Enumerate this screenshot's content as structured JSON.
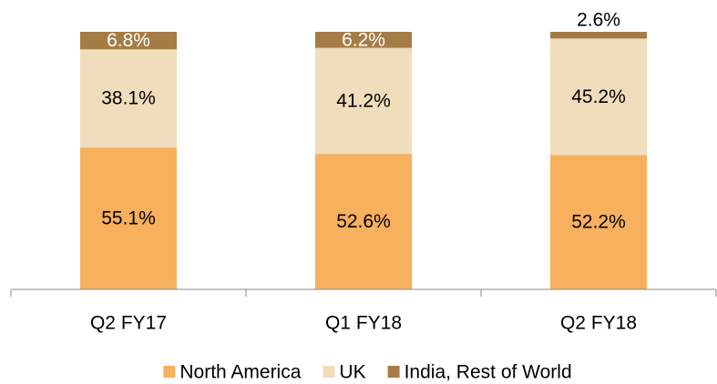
{
  "chart_data": {
    "type": "stacked-bar",
    "categories": [
      "Q2 FY17",
      "Q1 FY18",
      "Q2 FY18"
    ],
    "series": [
      {
        "name": "North America",
        "color": "#f7b05b",
        "values": [
          55.1,
          52.6,
          52.2
        ],
        "value_labels": [
          "55.1%",
          "52.6%",
          "52.2%"
        ]
      },
      {
        "name": "UK",
        "color": "#efddbc",
        "values": [
          38.1,
          41.2,
          45.2
        ],
        "value_labels": [
          "38.1%",
          "41.2%",
          "45.2%"
        ]
      },
      {
        "name": "India, Rest of World",
        "color": "#a57c45",
        "values": [
          6.8,
          6.2,
          2.6
        ],
        "value_labels": [
          "6.8%",
          "6.2%",
          "2.6%"
        ]
      }
    ],
    "ylim": [
      0,
      100
    ],
    "legend": "bottom"
  }
}
